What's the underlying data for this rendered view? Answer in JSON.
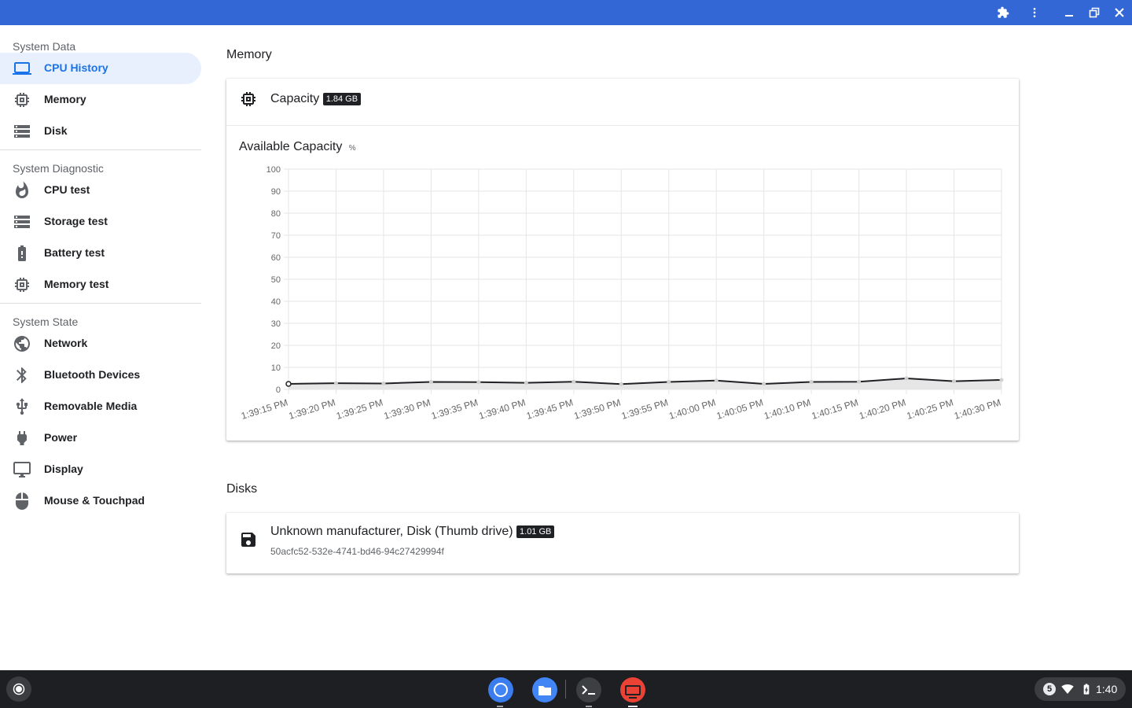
{
  "titlebar": {
    "color": "#3367d6",
    "icons": [
      "extension-icon",
      "more-vert-icon",
      "minimize-icon",
      "restore-icon",
      "close-icon"
    ]
  },
  "sidebar": {
    "sections": [
      {
        "title": "System Data",
        "items": [
          {
            "label": "CPU History",
            "icon": "laptop-icon",
            "active": true
          },
          {
            "label": "Memory",
            "icon": "chip-icon"
          },
          {
            "label": "Disk",
            "icon": "storage-icon"
          }
        ]
      },
      {
        "title": "System Diagnostic",
        "items": [
          {
            "label": "CPU test",
            "icon": "flame-icon"
          },
          {
            "label": "Storage test",
            "icon": "storage-icon"
          },
          {
            "label": "Battery test",
            "icon": "battery-icon"
          },
          {
            "label": "Memory test",
            "icon": "chip-icon"
          }
        ]
      },
      {
        "title": "System State",
        "items": [
          {
            "label": "Network",
            "icon": "globe-icon"
          },
          {
            "label": "Bluetooth Devices",
            "icon": "bluetooth-icon"
          },
          {
            "label": "Removable Media",
            "icon": "usb-icon"
          },
          {
            "label": "Power",
            "icon": "plug-icon"
          },
          {
            "label": "Display",
            "icon": "monitor-icon"
          },
          {
            "label": "Mouse & Touchpad",
            "icon": "mouse-icon"
          }
        ]
      }
    ]
  },
  "memory": {
    "section_title": "Memory",
    "capacity_label": "Capacity",
    "capacity_value": "1.84 GB",
    "chart_title": "Available Capacity",
    "chart_unit": "%"
  },
  "chart_data": {
    "type": "area",
    "title": "Available Capacity",
    "ylabel": "%",
    "ylim": [
      0,
      100
    ],
    "yticks": [
      0,
      10,
      20,
      30,
      40,
      50,
      60,
      70,
      80,
      90,
      100
    ],
    "categories": [
      "1:39:15 PM",
      "1:39:20 PM",
      "1:39:25 PM",
      "1:39:30 PM",
      "1:39:35 PM",
      "1:39:40 PM",
      "1:39:45 PM",
      "1:39:50 PM",
      "1:39:55 PM",
      "1:40:00 PM",
      "1:40:05 PM",
      "1:40:10 PM",
      "1:40:15 PM",
      "1:40:20 PM",
      "1:40:25 PM",
      "1:40:30 PM"
    ],
    "series": [
      {
        "values": [
          2.5,
          2.8,
          2.7,
          3.4,
          3.3,
          3.0,
          3.5,
          2.4,
          3.4,
          4.0,
          2.5,
          3.4,
          3.5,
          5.0,
          3.7,
          4.3
        ]
      }
    ],
    "grid": true,
    "line_color": "#202124",
    "fill_color": "#e6e6e6"
  },
  "disks": {
    "section_title": "Disks",
    "items": [
      {
        "name": "Unknown manufacturer, Disk (Thumb drive)",
        "size": "1.01 GB",
        "uuid": "50acfc52-532e-4741-bd46-94c27429994f",
        "icon": "save-icon"
      }
    ]
  },
  "shelf": {
    "apps": [
      "chrome-icon",
      "files-icon",
      "terminal-icon",
      "diagnostics-app-icon"
    ],
    "notification_count": "5",
    "time": "1:40"
  }
}
